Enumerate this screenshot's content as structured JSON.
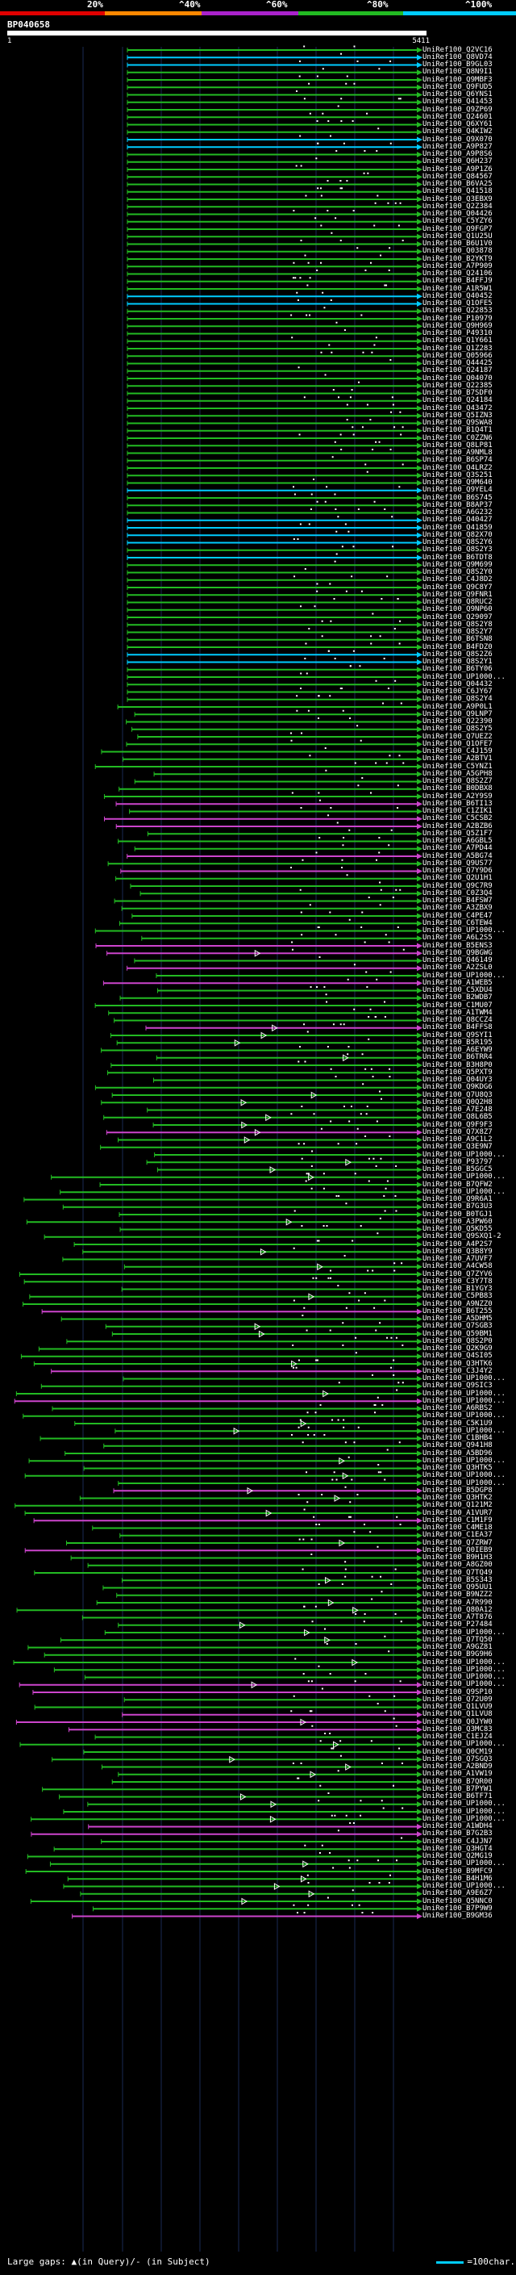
{
  "scale": {
    "labels": [
      "20%",
      "^40%",
      "^60%",
      "^80%",
      "^100%"
    ],
    "colors": [
      "#e00000",
      "#ff8800",
      "#aa22cc",
      "#22bb22",
      "#00ccff"
    ]
  },
  "query": {
    "name": "BP040658",
    "start": "1",
    "end": "5411"
  },
  "hits": [
    "UniRef100_Q2VC16",
    "UniRef100_Q8VD74",
    "UniRef100_B9GL03",
    "UniRef100_Q8N9I1",
    "UniRef100_Q9MBF3",
    "UniRef100_Q9FUD5",
    "UniRef100_Q6YNS1",
    "UniRef100_Q41453",
    "UniRef100_Q9ZP69",
    "UniRef100_Q24601",
    "UniRef100_Q6XY61",
    "UniRef100_Q4KIW2",
    "UniRef100_Q9X070",
    "UniRef100_A9P827",
    "UniRef100_A9P8S6",
    "UniRef100_Q6H237",
    "UniRef100_A9P1Z6",
    "UniRef100_Q84567",
    "UniRef100_B6VA25",
    "UniRef100_Q41518",
    "UniRef100_Q3EBX9",
    "UniRef100_Q2Z384",
    "UniRef100_Q04426",
    "UniRef100_C5YZY6",
    "UniRef100_Q9FGP7",
    "UniRef100_Q1U25U",
    "UniRef100_B6U1V0",
    "UniRef100_Q03878",
    "UniRef100_B2YKT9",
    "UniRef100_A7P909",
    "UniRef100_Q24106",
    "UniRef100_B4FFJ9",
    "UniRef100_A1R5W1",
    "UniRef100_Q40452",
    "UniRef100_Q1OFE5",
    "UniRef100_Q22853",
    "UniRef100_P10979",
    "UniRef100_Q9H969",
    "UniRef100_P49310",
    "UniRef100_Q1Y661",
    "UniRef100_Q1Z283",
    "UniRef100_Q05966",
    "UniRef100_Q44425",
    "UniRef100_Q24187",
    "UniRef100_Q04070",
    "UniRef100_Q22385",
    "UniRef100_B7SDF0",
    "UniRef100_Q24184",
    "UniRef100_Q43472",
    "UniRef100_Q5IZN3",
    "UniRef100_Q9SWA8",
    "UniRef100_B1Q4T1",
    "UniRef100_C0ZZN6",
    "UniRef100_Q8LP81",
    "UniRef100_A9NML8",
    "UniRef100_B6SP74",
    "UniRef100_Q4LRZ2",
    "UniRef100_Q3S251",
    "UniRef100_Q9M640",
    "UniRef100_Q9YEL4",
    "UniRef100_B6S745",
    "UniRef100_B8AP37",
    "UniRef100_A6G232",
    "UniRef100_Q40427",
    "UniRef100_Q41859",
    "UniRef100_Q82X70",
    "UniRef100_Q8S2Y6",
    "UniRef100_Q8S2Y3",
    "UniRef100_B6TDT8",
    "UniRef100_Q9M699",
    "UniRef100_Q8S2Y0",
    "UniRef100_C4J8D2",
    "UniRef100_Q9C8Y7",
    "UniRef100_Q9FNR1",
    "UniRef100_Q8RUC2",
    "UniRef100_Q9NP60",
    "UniRef100_Q29097",
    "UniRef100_Q8S2Y8",
    "UniRef100_Q8S2Y7",
    "UniRef100_B6TSN8",
    "UniRef100_B4FDZ0",
    "UniRef100_Q8S2Z6",
    "UniRef100_Q8S2Y1",
    "UniRef100_B6TY06",
    "UniRef100_UP1000...",
    "UniRef100_Q04432",
    "UniRef100_C6JY67",
    "UniRef100_Q8S2Y4",
    "UniRef100_A9P0L1",
    "UniRef100_Q9LNP7",
    "UniRef100_Q22390",
    "UniRef100_Q8S2Y5",
    "UniRef100_Q7UEZ2",
    "UniRef100_Q1OFE7",
    "UniRef100_C4J159",
    "UniRef100_A2BTV1",
    "UniRef100_C5YNZ1",
    "UniRef100_A5GPH8",
    "UniRef100_Q8S2Z7",
    "UniRef100_B0DBX8",
    "UniRef100_A2Y9S9",
    "UniRef100_B6TI13",
    "UniRef100_C1ZIK1",
    "UniRef100_C5CSB2",
    "UniRef100_A2BZB6",
    "UniRef100_Q5Z1F7",
    "UniRef100_A6GBL5",
    "UniRef100_A7PD44",
    "UniRef100_A5BG74",
    "UniRef100_Q9US77",
    "UniRef100_Q7Y9D6",
    "UniRef100_Q2U1H1",
    "UniRef100_Q9C7R9",
    "UniRef100_C0Z3Q4",
    "UniRef100_B4FSW7",
    "UniRef100_A3ZBX9",
    "UniRef100_C4PE47",
    "UniRef100_C6TEW4",
    "UniRef100_UP1000...",
    "UniRef100_A6L2S5",
    "UniRef100_B5ENS3",
    "UniRef100_Q9BGWG",
    "UniRef100_Q46149",
    "UniRef100_A2ZSL0",
    "UniRef100_UP1000...",
    "UniRef100_A1WEB5",
    "UniRef100_C5XDU4",
    "UniRef100_B2WDB7",
    "UniRef100_C1MU07",
    "UniRef100_A1TWM4",
    "UniRef100_Q8CCZ4",
    "UniRef100_B4FFS8",
    "UniRef100_Q9SYI1",
    "UniRef100_B5R195",
    "UniRef100_A6EYW9",
    "UniRef100_B6TRR4",
    "UniRef100_B3H8P0",
    "UniRef100_Q5PXT9",
    "UniRef100_Q04UY3",
    "UniRef100_Q9KDG6",
    "UniRef100_Q7U8Q3",
    "UniRef100_Q0Q2H8",
    "UniRef100_A7E248",
    "UniRef100_Q8L6B5",
    "UniRef100_Q9F9F3",
    "UniRef100_Q7X8Z7",
    "UniRef100_A9C1L2",
    "UniRef100_Q3E9N7",
    "UniRef100_UP1000...",
    "UniRef100_P93797",
    "UniRef100_B5GGC5",
    "UniRef100_UP1000...",
    "UniRef100_B7QFW2",
    "UniRef100_UP1000...",
    "UniRef100_Q9R6A1",
    "UniRef100_B7G3U3",
    "UniRef100_B0TGJ1",
    "UniRef100_A3PW60",
    "UniRef100_Q5KD55",
    "UniRef100_Q9SXQ1-2",
    "UniRef100_A4P2S7",
    "UniRef100_Q3B8Y9",
    "UniRef100_A7UVF7",
    "UniRef100_A4CW58",
    "UniRef100_Q7ZYV6",
    "UniRef100_C3Y7T8",
    "UniRef100_B1YGY3",
    "UniRef100_C5PB83",
    "UniRef100_A9NZZ0",
    "UniRef100_B6T255",
    "UniRef100_A5DHM5",
    "UniRef100_Q7SGB3",
    "UniRef100_Q59BM1",
    "UniRef100_Q8S2P0",
    "UniRef100_Q2K9G9",
    "UniRef100_Q4SI05",
    "UniRef100_Q3HTK6",
    "UniRef100_C3J4Y2",
    "UniRef100_UP1000...",
    "UniRef100_Q9SIC3",
    "UniRef100_UP1000...",
    "UniRef100_UP1000...",
    "UniRef100_A6RBS2",
    "UniRef100_UP1000...",
    "UniRef100_C5K1U9",
    "UniRef100_UP1000...",
    "UniRef100_C1BHB4",
    "UniRef100_Q941H8",
    "UniRef100_A5BD96",
    "UniRef100_UP1000...",
    "UniRef100_Q3HTK5",
    "UniRef100_UP1000...",
    "UniRef100_UP1000...",
    "UniRef100_B5DGP8",
    "UniRef100_Q3HTK2",
    "UniRef100_Q121M2",
    "UniRef100_A1VUR7",
    "UniRef100_C1M1F9",
    "UniRef100_C4ME18",
    "UniRef100_C1EA37",
    "UniRef100_Q7ZRW7",
    "UniRef100_Q0IEB9",
    "UniRef100_B9H1H3",
    "UniRef100_A8GZ00",
    "UniRef100_Q7TQ49",
    "UniRef100_B5S343",
    "UniRef100_Q95UU1",
    "UniRef100_B9NZZ2",
    "UniRef100_A7R990",
    "UniRef100_Q80A12",
    "UniRef100_A7T876",
    "UniRef100_P27484",
    "UniRef100_UP1000...",
    "UniRef100_Q7TQ50",
    "UniRef100_A9GZ81",
    "UniRef100_B9G9H6",
    "UniRef100_UP1000...",
    "UniRef100_UP1000...",
    "UniRef100_UP1000...",
    "UniRef100_UP1000...",
    "UniRef100_Q9SP10",
    "UniRef100_Q72U09",
    "UniRef100_Q1LVU9",
    "UniRef100_Q1LVU8",
    "UniRef100_Q0JYW0",
    "UniRef100_Q3MC83",
    "UniRef100_C1EJZ4",
    "UniRef100_UP1000...",
    "UniRef100_Q0CM19",
    "UniRef100_Q7SGQ3",
    "UniRef100_A2BND9",
    "UniRef100_A1VW19",
    "UniRef100_B7QR00",
    "UniRef100_B7PYW1",
    "UniRef100_B6TF71",
    "UniRef100_UP1000...",
    "UniRef100_UP1000...",
    "UniRef100_UP1000...",
    "UniRef100_A1WDH4",
    "UniRef100_B7G2B3",
    "UniRef100_C4JJN7",
    "UniRef100_Q3HGT4",
    "UniRef100_Q2MG19",
    "UniRef100_UP1000...",
    "UniRef100_B9MFC9",
    "UniRef100_B4H1M6",
    "UniRef100_UP1000...",
    "UniRef100_A9E6Z7",
    "UniRef100_Q5NNC0",
    "UniRef100_B7P9W9",
    "UniRef100_B9GM36"
  ],
  "legend": {
    "text": "Large gaps: ▲(in Query)/- (in Subject)",
    "right": "=100char."
  }
}
